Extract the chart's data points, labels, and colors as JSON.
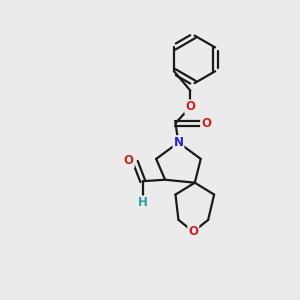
{
  "bg_color": "#ebebeb",
  "bond_color": "#1a1a1a",
  "atom_colors": {
    "N": "#2222cc",
    "O": "#cc2222",
    "H": "#2ca0a0",
    "C": "#1a1a1a"
  },
  "figsize": [
    3.0,
    3.0
  ],
  "dpi": 100,
  "bond_lw": 1.6,
  "font_size": 8.5
}
